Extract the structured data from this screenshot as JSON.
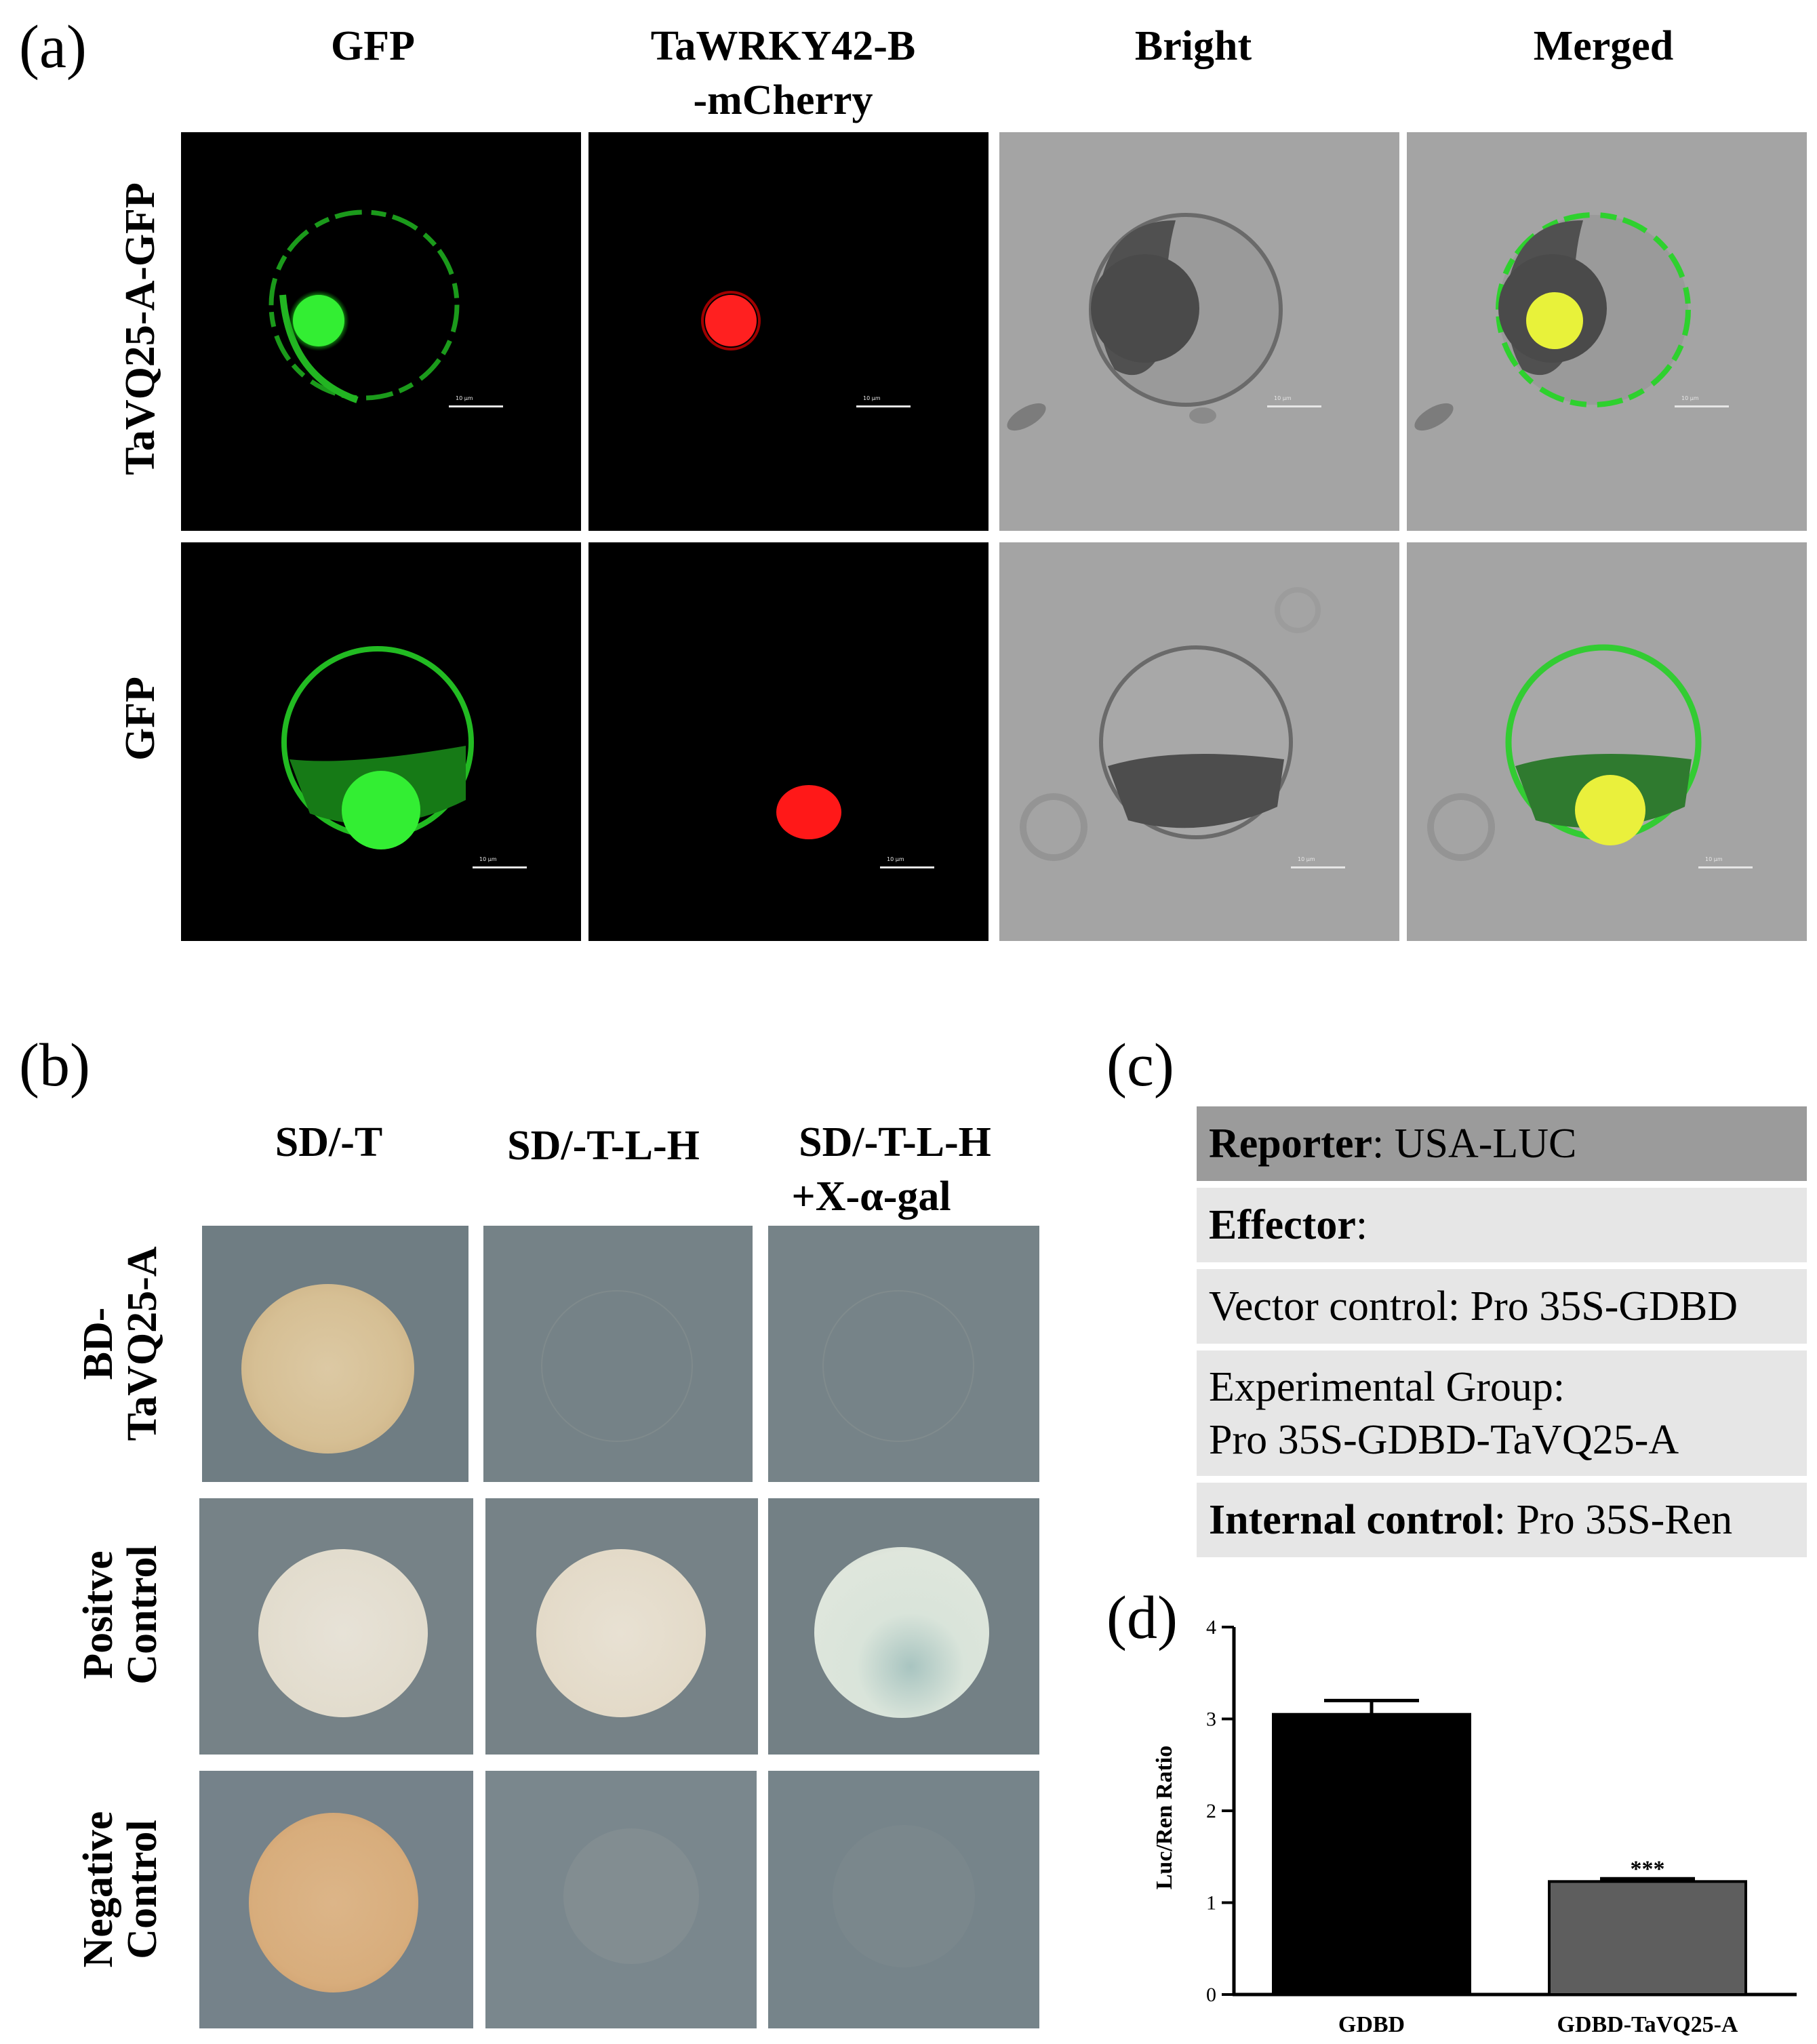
{
  "panel_a": {
    "label": "(a)",
    "columns": [
      "GFP",
      "TaWRKY42-B",
      "-mCherry",
      "Bright",
      "Merged"
    ],
    "rows": [
      "TaVQ25-A-GFP",
      "GFP"
    ],
    "scale_bar_text": "10 μm"
  },
  "panel_b": {
    "label": "(b)",
    "columns": [
      "SD/-T",
      "SD/-T-L-H",
      "SD/-T-L-H",
      "+X-α-gal"
    ],
    "rows": [
      {
        "line1": "BD-",
        "line2": "TaVQ25-A"
      },
      {
        "line1": "Positve",
        "line2": "Control"
      },
      {
        "line1": "Negative",
        "line2": "Control"
      }
    ]
  },
  "panel_c": {
    "label": "(c)",
    "reporter_key": "Reporter",
    "reporter_val": ": USA-LUC",
    "effector_key": "Effector",
    "effector_val": ":",
    "vector_control": "Vector control: Pro 35S-GDBD",
    "experimental_1": "Experimental Group:",
    "experimental_2": "Pro 35S-GDBD-TaVQ25-A",
    "internal_key": "Internal control",
    "internal_val": ": Pro 35S-Ren"
  },
  "panel_d": {
    "label": "(d)"
  },
  "chart_data": {
    "type": "bar",
    "categories": [
      "GDBD",
      "GDBD-TaVQ25-A"
    ],
    "values": [
      3.05,
      1.23
    ],
    "errors": [
      0.15,
      0.03
    ],
    "colors": [
      "#000000",
      "#5e5e5e"
    ],
    "significance": [
      "",
      "***"
    ],
    "ylabel": "Luc/Ren Ratio",
    "ylim": [
      0,
      4
    ],
    "yticks": [
      "0",
      "1",
      "2",
      "3",
      "4"
    ]
  }
}
